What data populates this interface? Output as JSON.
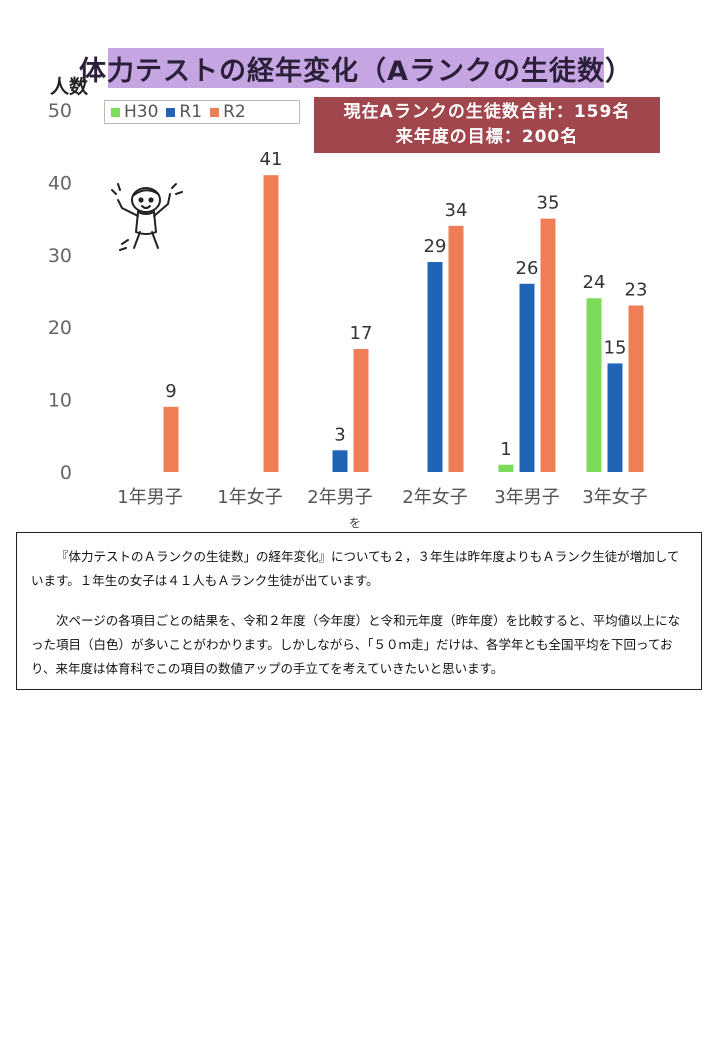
{
  "chart_data": {
    "type": "bar",
    "title": "体力テストの経年変化（Aランクの生徒数）",
    "ylabel": "人数",
    "ylim": [
      0,
      50
    ],
    "yticks": [
      0,
      10,
      20,
      30,
      40,
      50
    ],
    "categories": [
      "1年男子",
      "1年女子",
      "2年男子",
      "2年女子",
      "3年男子",
      "3年女子"
    ],
    "series": [
      {
        "name": "H30",
        "color": "#7ddb5a",
        "values": [
          0,
          0,
          0,
          0,
          1,
          24
        ],
        "labels": [
          "",
          "",
          "",
          "",
          "",
          "24"
        ]
      },
      {
        "name": "R1",
        "color": "#1f64b5",
        "values": [
          0,
          0,
          3,
          29,
          26,
          15
        ],
        "labels": [
          "",
          "",
          "3",
          "29",
          "26",
          "15"
        ]
      },
      {
        "name": "R2",
        "color": "#ef7e57",
        "values": [
          9,
          41,
          17,
          34,
          35,
          23
        ],
        "labels": [
          "9",
          "41",
          "17",
          "34",
          "35",
          "23"
        ]
      }
    ],
    "extra_labels": {
      "h30_3年男子": "1"
    },
    "legend_position": "top-left",
    "grid": false
  },
  "summary": {
    "line1": "現在Aランクの生徒数合計：159名",
    "line2": "来年度の目標：200名"
  },
  "note_mark": "を",
  "text": {
    "p1": "『体力テストのＡランクの生徒数」の経年変化』についても２，３年生は昨年度よりもＡランク生徒が増加しています。１年生の女子は４１人もＡランク生徒が出ています。",
    "p2": "次ページの各項目ごとの結果を、令和２年度（今年度）と令和元年度（昨年度）を比較すると、平均値以上になった項目（白色）が多いことがわかります。しかしながら、「５０ｍ走」だけは、各学年とも全国平均を下回っており、来年度は体育科でこの項目の数値アップの手立てを考えていきたいと思います。"
  }
}
